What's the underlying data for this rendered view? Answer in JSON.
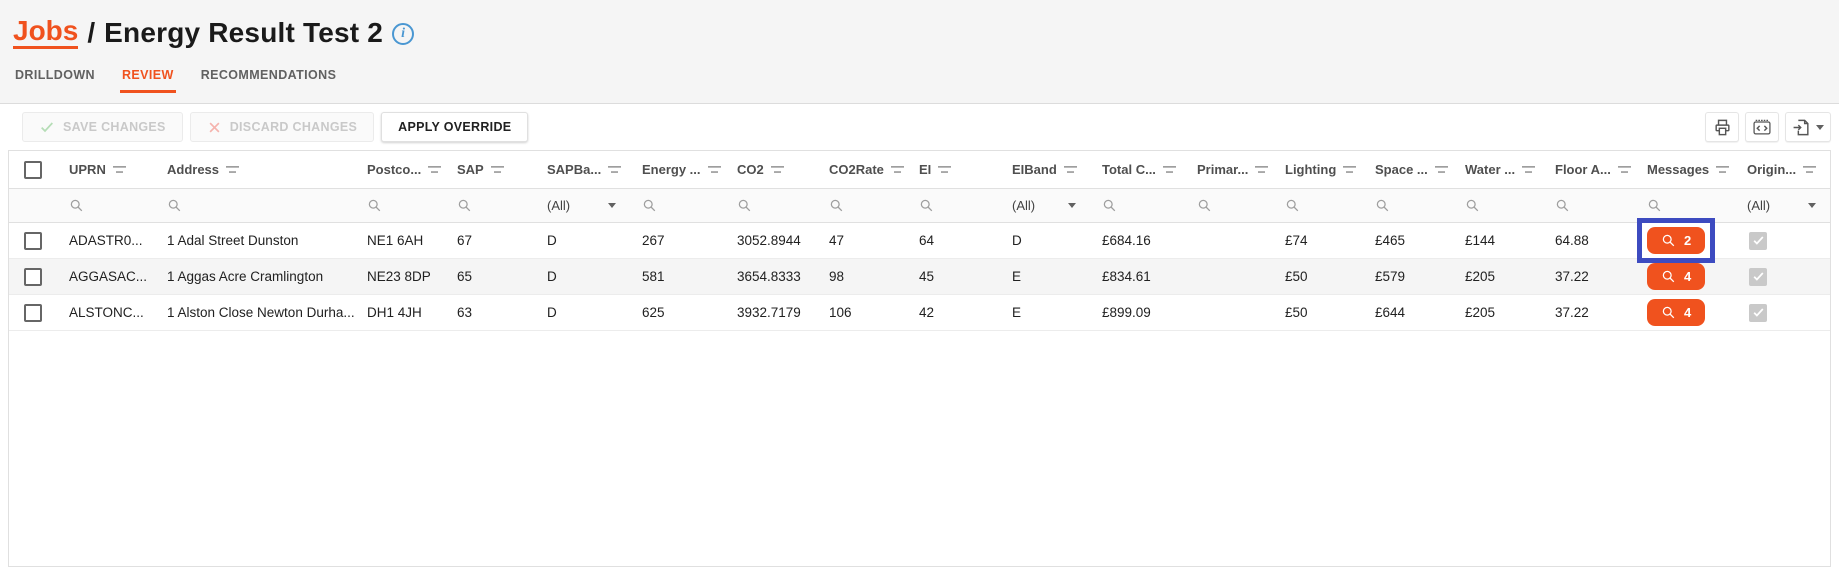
{
  "header": {
    "breadcrumb": "Jobs",
    "separator": "/",
    "title": "Energy Result Test 2",
    "info_icon": "info-circle-icon"
  },
  "tabs": [
    {
      "label": "DRILLDOWN",
      "active": false
    },
    {
      "label": "REVIEW",
      "active": true
    },
    {
      "label": "RECOMMENDATIONS",
      "active": false
    }
  ],
  "toolbar": {
    "save": "SAVE CHANGES",
    "discard": "DISCARD CHANGES",
    "apply": "APPLY OVERRIDE",
    "right_icons": [
      {
        "name": "print-icon"
      },
      {
        "name": "code-icon"
      },
      {
        "name": "export-icon",
        "has_caret": true
      }
    ]
  },
  "grid": {
    "columns": [
      {
        "field": "select",
        "label": "",
        "filter": "none",
        "type": "checkbox"
      },
      {
        "field": "uprn",
        "label": "UPRN",
        "filter": "search"
      },
      {
        "field": "address",
        "label": "Address",
        "filter": "search"
      },
      {
        "field": "postcode",
        "label": "Postco...",
        "filter": "search"
      },
      {
        "field": "sap",
        "label": "SAP",
        "filter": "search"
      },
      {
        "field": "sapband",
        "label": "SAPBa...",
        "filter": "select",
        "filter_value": "(All)"
      },
      {
        "field": "energy",
        "label": "Energy ...",
        "filter": "search"
      },
      {
        "field": "co2",
        "label": "CO2",
        "filter": "search"
      },
      {
        "field": "co2rate",
        "label": "CO2Rate",
        "filter": "search"
      },
      {
        "field": "ei",
        "label": "EI",
        "filter": "search"
      },
      {
        "field": "eiband",
        "label": "EIBand",
        "filter": "select",
        "filter_value": "(All)"
      },
      {
        "field": "totalcost",
        "label": "Total C...",
        "filter": "search"
      },
      {
        "field": "primary",
        "label": "Primar...",
        "filter": "search"
      },
      {
        "field": "lighting",
        "label": "Lighting",
        "filter": "search"
      },
      {
        "field": "space",
        "label": "Space ...",
        "filter": "search"
      },
      {
        "field": "water",
        "label": "Water ...",
        "filter": "search"
      },
      {
        "field": "floorarea",
        "label": "Floor A...",
        "filter": "search"
      },
      {
        "field": "messages",
        "label": "Messages",
        "filter": "search",
        "type": "button"
      },
      {
        "field": "origin",
        "label": "Origin...",
        "filter": "select",
        "filter_value": "(All)",
        "type": "checkbox-checked"
      }
    ],
    "rows": [
      {
        "uprn": "ADASTR0...",
        "address": "1 Adal Street Dunston",
        "postcode": "NE1 6AH",
        "sap": "67",
        "sapband": "D",
        "energy": "267",
        "co2": "3052.8944",
        "co2rate": "47",
        "ei": "64",
        "eiband": "D",
        "totalcost": "£684.16",
        "primary": "",
        "lighting": "£74",
        "space": "£465",
        "water": "£144",
        "floorarea": "64.88",
        "messages": "2",
        "origin_checked": true,
        "messages_highlighted": true
      },
      {
        "uprn": "AGGASAC...",
        "address": "1 Aggas Acre Cramlington",
        "postcode": "NE23 8DP",
        "sap": "65",
        "sapband": "D",
        "energy": "581",
        "co2": "3654.8333",
        "co2rate": "98",
        "ei": "45",
        "eiband": "E",
        "totalcost": "£834.61",
        "primary": "",
        "lighting": "£50",
        "space": "£579",
        "water": "£205",
        "floorarea": "37.22",
        "messages": "4",
        "origin_checked": true,
        "messages_highlighted": false
      },
      {
        "uprn": "ALSTONC...",
        "address": "1 Alston Close Newton Durha...",
        "postcode": "DH1 4JH",
        "sap": "63",
        "sapband": "D",
        "energy": "625",
        "co2": "3932.7179",
        "co2rate": "106",
        "ei": "42",
        "eiband": "E",
        "totalcost": "£899.09",
        "primary": "",
        "lighting": "£50",
        "space": "£644",
        "water": "£205",
        "floorarea": "37.22",
        "messages": "4",
        "origin_checked": true,
        "messages_highlighted": false
      }
    ]
  },
  "colors": {
    "accent": "#F0521E",
    "highlight_box": "#3D4BC0",
    "info_blue": "#4a97d2"
  }
}
